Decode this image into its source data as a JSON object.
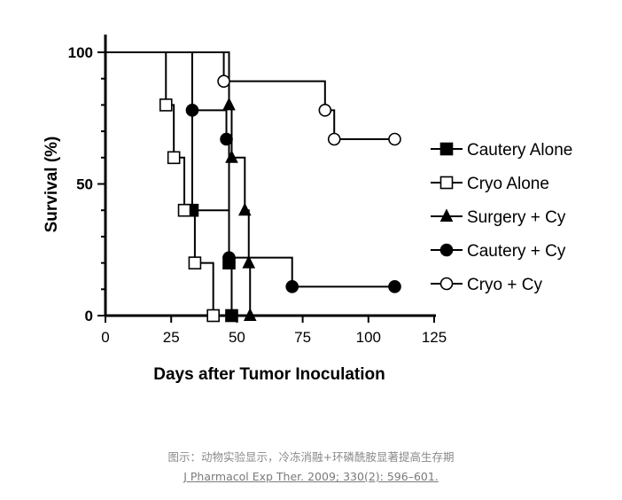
{
  "chart_data": {
    "type": "line",
    "subtype": "kaplan-meier step survival",
    "xlabel": "Days after Tumor Inoculation",
    "ylabel": "Survival (%)",
    "xlim": [
      0,
      125
    ],
    "ylim": [
      0,
      100
    ],
    "xticks": [
      "0",
      "25",
      "50",
      "75",
      "100",
      "125"
    ],
    "yticks": [
      "0",
      "50",
      "100"
    ],
    "grid": false,
    "legend_position": "right",
    "series": [
      {
        "name": "Cautery Alone",
        "marker": "filled-square",
        "points": [
          [
            33,
            40
          ],
          [
            47,
            20
          ],
          [
            48,
            0
          ]
        ]
      },
      {
        "name": "Cryo Alone",
        "marker": "open-square",
        "points": [
          [
            23,
            80
          ],
          [
            26,
            60
          ],
          [
            30,
            40
          ],
          [
            34,
            20
          ],
          [
            41,
            0
          ]
        ]
      },
      {
        "name": "Surgery + Cy",
        "marker": "filled-triangle",
        "points": [
          [
            47,
            80
          ],
          [
            48,
            60
          ],
          [
            53,
            40
          ],
          [
            54.5,
            20
          ],
          [
            55,
            0
          ]
        ]
      },
      {
        "name": "Cautery + Cy",
        "marker": "filled-circle",
        "points": [
          [
            33,
            78
          ],
          [
            46,
            67
          ],
          [
            47,
            22
          ],
          [
            71,
            11
          ],
          [
            110,
            11
          ]
        ]
      },
      {
        "name": "Cryo + Cy",
        "marker": "open-circle",
        "points": [
          [
            45,
            89
          ],
          [
            83.5,
            78
          ],
          [
            87,
            67
          ],
          [
            110,
            67
          ]
        ]
      }
    ]
  },
  "caption": "图示：动物实验显示，冷冻消融+环磷酰胺显著提高生存期",
  "citation": "J Pharmacol Exp Ther. 2009; 330(2): 596–601."
}
